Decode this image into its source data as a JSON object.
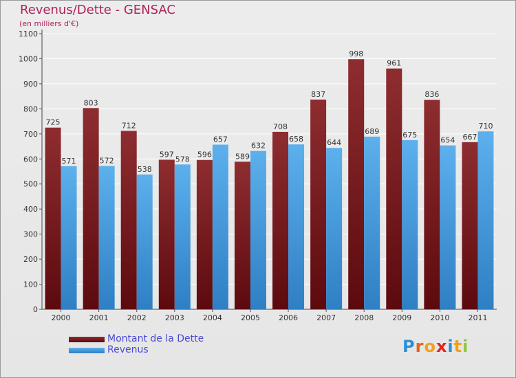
{
  "title": "Revenus/Dette - GENSAC",
  "subtitle": "(en milliers d'€)",
  "brand": {
    "letters": [
      "P",
      "r",
      "o",
      "x",
      "i",
      "t",
      "i"
    ]
  },
  "colors": {
    "title": "#b0225c",
    "legend_text": "#4a4ad6",
    "dette": "#7a1c20",
    "dette_light": "#9e3a3e",
    "revenus": "#4ea2e2",
    "revenus_light": "#6ab8ef",
    "grid": "#ffffff",
    "brand": [
      "#2d8fd6",
      "#e8641c",
      "#f0a020",
      "#e0261e",
      "#2d8fd6",
      "#f0a020",
      "#8cc63f"
    ]
  },
  "legend": [
    {
      "label": "Montant de la Dette",
      "series": 0
    },
    {
      "label": "Revenus",
      "series": 1
    }
  ],
  "chart_data": {
    "type": "bar",
    "title": "Revenus/Dette - GENSAC",
    "subtitle": "(en milliers d'€)",
    "xlabel": "",
    "ylabel": "",
    "ylim": [
      0,
      1100
    ],
    "yticks": [
      0,
      100,
      200,
      300,
      400,
      500,
      600,
      700,
      800,
      900,
      1000,
      1100
    ],
    "grid": true,
    "legend_position": "bottom-left",
    "categories": [
      "2000",
      "2001",
      "2002",
      "2003",
      "2004",
      "2005",
      "2006",
      "2007",
      "2008",
      "2009",
      "2010",
      "2011"
    ],
    "series": [
      {
        "name": "Montant de la Dette",
        "values": [
          725,
          803,
          712,
          597,
          596,
          589,
          708,
          837,
          998,
          961,
          836,
          667
        ]
      },
      {
        "name": "Revenus",
        "values": [
          571,
          572,
          538,
          578,
          657,
          632,
          658,
          644,
          689,
          675,
          654,
          710
        ]
      }
    ]
  }
}
